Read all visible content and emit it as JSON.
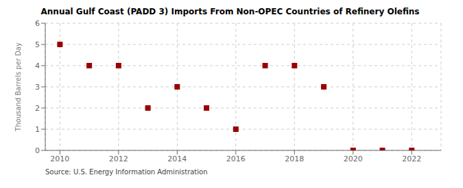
{
  "chart_data": {
    "type": "scatter",
    "title": "Annual Gulf Coast (PADD 3) Imports From Non-OPEC Countries of Refinery Olefins",
    "ylabel": "Thousand Barrels per Day",
    "source": "Source: U.S. Energy Information Administration",
    "x": [
      2010,
      2011,
      2012,
      2013,
      2014,
      2015,
      2016,
      2017,
      2018,
      2019,
      2020,
      2021,
      2022
    ],
    "values": [
      5,
      4,
      4,
      2,
      3,
      2,
      1,
      4,
      4,
      3,
      0,
      0,
      0
    ],
    "xlim": [
      2009.5,
      2023.0
    ],
    "ylim": [
      0,
      6
    ],
    "xticks": [
      2010,
      2012,
      2014,
      2016,
      2018,
      2020,
      2022
    ],
    "yticks": [
      0,
      1,
      2,
      3,
      4,
      5,
      6
    ],
    "color": "#990000",
    "marker": "square",
    "grid": true
  }
}
